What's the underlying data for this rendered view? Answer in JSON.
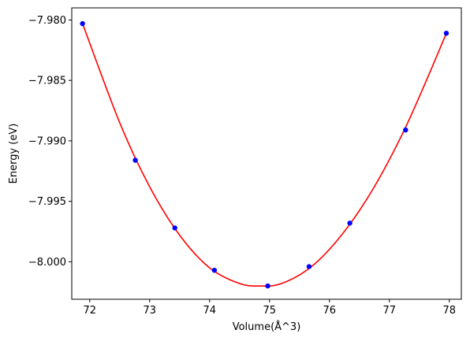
{
  "chart_data": {
    "type": "scatter",
    "title": "",
    "xlabel": "Volume(Å^3)",
    "ylabel": "Energy (eV)",
    "xlim": [
      71.7,
      78.2
    ],
    "ylim": [
      -8.0031,
      -7.979
    ],
    "xticks": [
      72,
      73,
      74,
      75,
      76,
      77,
      78
    ],
    "xtick_labels": [
      "72",
      "73",
      "74",
      "75",
      "76",
      "77",
      "78"
    ],
    "yticks": [
      -8.0,
      -7.995,
      -7.99,
      -7.985,
      -7.98
    ],
    "ytick_labels": [
      "−8.000",
      "−7.995",
      "−7.990",
      "−7.985",
      "−7.980"
    ],
    "grid": false,
    "colors": {
      "points": "#0000ff",
      "fit": "#ff0000"
    },
    "series": [
      {
        "kind": "points",
        "x": [
          71.88,
          72.76,
          73.42,
          74.08,
          74.97,
          75.66,
          76.34,
          77.27,
          77.95
        ],
        "y": [
          -7.9803,
          -7.9916,
          -7.9972,
          -8.0007,
          -8.002,
          -8.0004,
          -7.9968,
          -7.9891,
          -7.9811
        ]
      },
      {
        "kind": "fit-curve",
        "x": [
          71.88,
          72.5,
          73.0,
          73.5,
          74.0,
          74.5,
          74.84,
          75.2,
          75.7,
          76.2,
          76.7,
          77.2,
          77.6,
          77.95
        ],
        "y": [
          -7.9803,
          -7.9885,
          -7.9938,
          -7.9978,
          -8.0005,
          -8.0018,
          -8.002,
          -8.0018,
          -8.0004,
          -7.9978,
          -7.9942,
          -7.9896,
          -7.9852,
          -7.9811
        ]
      }
    ]
  }
}
